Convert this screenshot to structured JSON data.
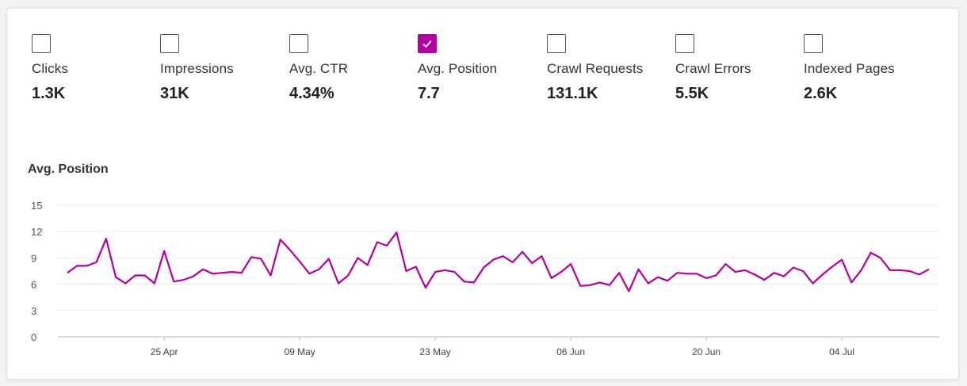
{
  "metrics": [
    {
      "label": "Clicks",
      "value": "1.3K",
      "checked": false
    },
    {
      "label": "Impressions",
      "value": "31K",
      "checked": false
    },
    {
      "label": "Avg. CTR",
      "value": "4.34%",
      "checked": false
    },
    {
      "label": "Avg. Position",
      "value": "7.7",
      "checked": true
    },
    {
      "label": "Crawl Requests",
      "value": "131.1K",
      "checked": false
    },
    {
      "label": "Crawl Errors",
      "value": "5.5K",
      "checked": false
    },
    {
      "label": "Indexed Pages",
      "value": "2.6K",
      "checked": false
    }
  ],
  "colors": {
    "accent": "#b4009e",
    "line": "#b4009e",
    "grid": "#ececec",
    "axis": "#bbbbbb"
  },
  "chart_data": {
    "type": "line",
    "title": "Avg. Position",
    "xlabel": "",
    "ylabel": "",
    "ylim": [
      0,
      15
    ],
    "yticks": [
      0,
      3,
      6,
      9,
      12,
      15
    ],
    "xtick_labels": [
      "25 Apr",
      "09 May",
      "23 May",
      "06 Jun",
      "20 Jun",
      "04 Jul"
    ],
    "xtick_index": [
      10,
      24,
      38,
      52,
      66,
      80
    ],
    "grid": true,
    "legend": "none",
    "series": [
      {
        "values": [
          7.3,
          8.1,
          8.1,
          8.5,
          11.2,
          6.8,
          6.1,
          7.0,
          7.0,
          6.1,
          9.8,
          6.3,
          6.5,
          6.9,
          7.7,
          7.2,
          7.3,
          7.4,
          7.3,
          9.1,
          8.9,
          7.0,
          11.1,
          9.9,
          8.6,
          7.2,
          7.7,
          8.9,
          6.1,
          7.0,
          9.0,
          8.2,
          10.8,
          10.4,
          11.9,
          7.5,
          8.0,
          5.6,
          7.4,
          7.6,
          7.4,
          6.3,
          6.2,
          7.9,
          8.8,
          9.2,
          8.5,
          9.7,
          8.4,
          9.2,
          6.7,
          7.4,
          8.3,
          5.8,
          5.9,
          6.2,
          5.9,
          7.3,
          5.2,
          7.7,
          6.1,
          6.8,
          6.4,
          7.3,
          7.2,
          7.2,
          6.7,
          7.0,
          8.3,
          7.4,
          7.6,
          7.1,
          6.5,
          7.3,
          6.9,
          7.9,
          7.5,
          6.1,
          7.1,
          8.0,
          8.8,
          6.2,
          7.6,
          9.6,
          9.0,
          7.6,
          7.6,
          7.5,
          7.1,
          7.7
        ]
      }
    ]
  }
}
